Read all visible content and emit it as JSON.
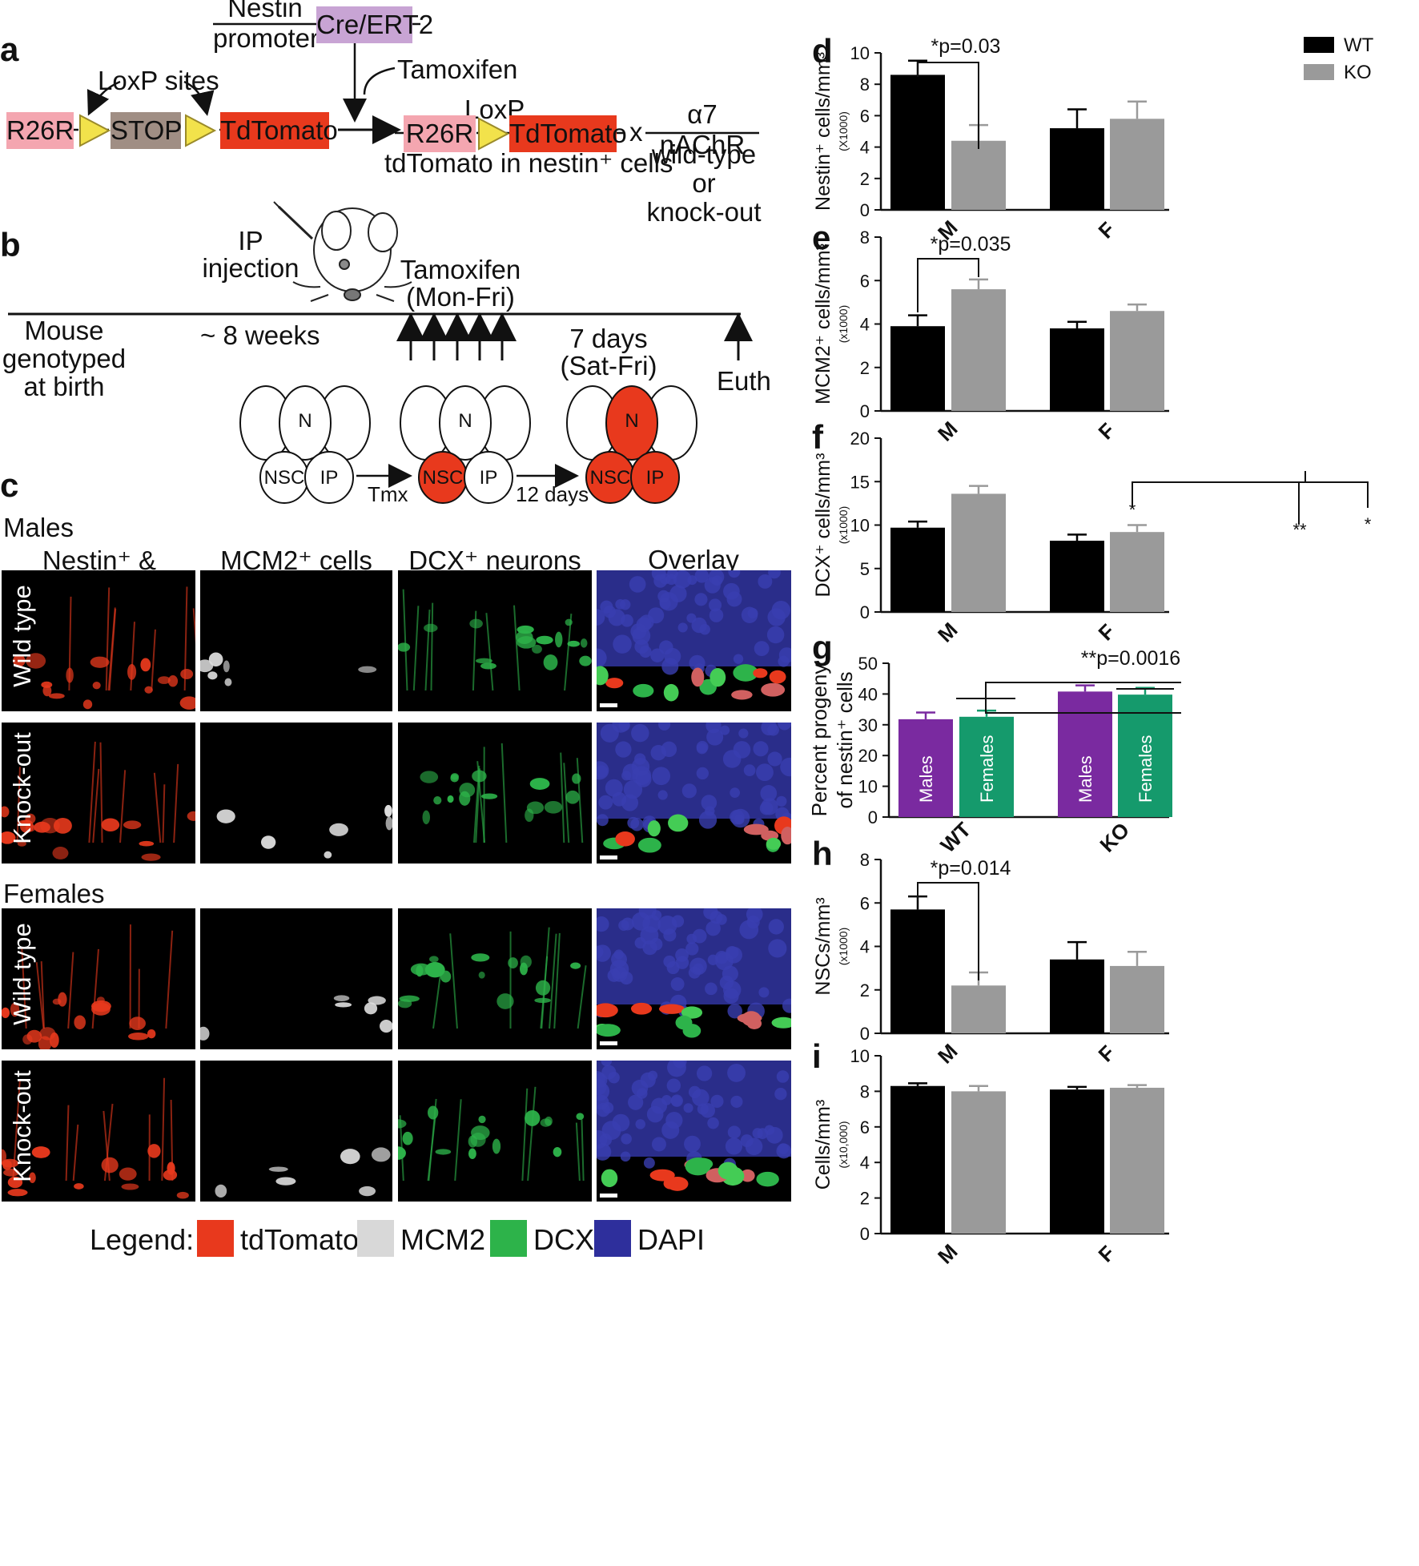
{
  "panel_labels": {
    "a": "a",
    "b": "b",
    "c": "c",
    "d": "d",
    "e": "e",
    "f": "f",
    "g": "g",
    "h": "h",
    "i": "i"
  },
  "panel_a": {
    "nestin_line1": "Nestin",
    "nestin_line2": "promoter",
    "cre": "Cre/ERT2",
    "tamoxifen": "Tamoxifen",
    "loxp_sites": "LoxP sites",
    "r26r": "R26R",
    "stop": "STOP",
    "tdtomato": "TdTomato",
    "loxp": "LoxP",
    "result": "tdTomato in nestin⁺ cells",
    "cross": "x",
    "receptor": "α7 nAChR",
    "genotype_1": "wild-type",
    "genotype_2": "or",
    "genotype_3": "knock-out",
    "colors": {
      "r26r": "#f4a6b0",
      "stop": "#a08e84",
      "tdtomato": "#e8391d",
      "cre": "#c8a4d4",
      "loxp": "#f2e24b"
    }
  },
  "panel_b": {
    "ip_1": "IP",
    "ip_2": "injection",
    "tamoxifen_1": "Tamoxifen",
    "tamoxifen_2": "(Mon-Fri)",
    "mouse_1": "Mouse",
    "mouse_2": "genotyped",
    "mouse_3": "at birth",
    "weeks": "~ 8 weeks",
    "days_1": "7 days",
    "days_2": "(Sat-Fri)",
    "euth": "Euth",
    "cell_n": "N",
    "cell_nsc": "NSC",
    "cell_ip": "IP",
    "tmx": "Tmx",
    "twelve_days": "12 days"
  },
  "panel_c": {
    "males": "Males",
    "females": "Females",
    "col_1": "Nestin⁺ & progeny",
    "col_2": "MCM2⁺ cells",
    "col_3": "DCX⁺ neurons",
    "col_4": "Overlay",
    "row_wt": "Wild type",
    "row_ko": "Knock-out"
  },
  "legend": {
    "title": "Legend:",
    "items": [
      {
        "label": "tdTomato",
        "color": "#e8391d"
      },
      {
        "label": "MCM2",
        "color": "#d8d8d8"
      },
      {
        "label": "DCX",
        "color": "#2db34a"
      },
      {
        "label": "DAPI",
        "color": "#2e2f9c"
      }
    ]
  },
  "chart_data": [
    {
      "panel": "d",
      "type": "bar",
      "ylabel": "Nestin⁺ cells/mm³",
      "ylabel_sub": "(X1000)",
      "categories": [
        "M",
        "F"
      ],
      "ylim": [
        0,
        10
      ],
      "yticks": [
        0,
        2,
        4,
        6,
        8,
        10
      ],
      "series": [
        {
          "name": "WT",
          "color": "#000000",
          "values": [
            8.6,
            5.2
          ],
          "errors": [
            0.9,
            1.2
          ]
        },
        {
          "name": "KO",
          "color": "#9a9a9a",
          "values": [
            4.4,
            5.8
          ],
          "errors": [
            1.0,
            1.1
          ]
        }
      ],
      "annotation": "*p=0.03",
      "legend": "top-right"
    },
    {
      "panel": "e",
      "type": "bar",
      "ylabel": "MCM2⁺ cells/mm³",
      "ylabel_sub": "(x1000)",
      "categories": [
        "M",
        "F"
      ],
      "ylim": [
        0,
        8
      ],
      "yticks": [
        0,
        2,
        4,
        6,
        8
      ],
      "series": [
        {
          "name": "WT",
          "color": "#000000",
          "values": [
            3.9,
            3.8
          ],
          "errors": [
            0.5,
            0.3
          ]
        },
        {
          "name": "KO",
          "color": "#9a9a9a",
          "values": [
            5.6,
            4.6
          ],
          "errors": [
            0.45,
            0.3
          ]
        }
      ],
      "annotation": "*p=0.035"
    },
    {
      "panel": "f",
      "type": "bar",
      "ylabel": "DCX⁺ cells/mm³",
      "ylabel_sub": "(x1000)",
      "categories": [
        "M",
        "F"
      ],
      "ylim": [
        0,
        20
      ],
      "yticks": [
        0,
        5,
        10,
        15,
        20
      ],
      "series": [
        {
          "name": "WT",
          "color": "#000000",
          "values": [
            9.7,
            8.2
          ],
          "errors": [
            0.7,
            0.7
          ]
        },
        {
          "name": "KO",
          "color": "#9a9a9a",
          "values": [
            13.6,
            9.2
          ],
          "errors": [
            0.9,
            0.8
          ]
        }
      ],
      "significance": [
        "*",
        "**",
        "*"
      ]
    },
    {
      "panel": "g",
      "type": "bar",
      "ylabel_1": "Percent progeny",
      "ylabel_2": "of nestin⁺ cells",
      "categories": [
        "WT",
        "KO"
      ],
      "ylim": [
        0,
        50
      ],
      "yticks": [
        0,
        10,
        20,
        30,
        40,
        50
      ],
      "series": [
        {
          "name": "Males",
          "color": "#7a2aa0",
          "values": [
            31.8,
            40.8
          ],
          "errors": [
            2.2,
            2.0
          ]
        },
        {
          "name": "Females",
          "color": "#159a6c",
          "values": [
            32.6,
            39.8
          ],
          "errors": [
            2.0,
            2.2
          ]
        }
      ],
      "annotation": "**p=0.0016"
    },
    {
      "panel": "h",
      "type": "bar",
      "ylabel": "NSCs/mm³",
      "ylabel_sub": "(x1000)",
      "categories": [
        "M",
        "F"
      ],
      "ylim": [
        0,
        8
      ],
      "yticks": [
        0,
        2,
        4,
        6,
        8
      ],
      "series": [
        {
          "name": "WT",
          "color": "#000000",
          "values": [
            5.7,
            3.4
          ],
          "errors": [
            0.6,
            0.8
          ]
        },
        {
          "name": "KO",
          "color": "#9a9a9a",
          "values": [
            2.2,
            3.1
          ],
          "errors": [
            0.6,
            0.65
          ]
        }
      ],
      "annotation": "*p=0.014"
    },
    {
      "panel": "i",
      "type": "bar",
      "ylabel": "Cells/mm³",
      "ylabel_sub": "(x10,000)",
      "categories": [
        "M",
        "F"
      ],
      "ylim": [
        0,
        10
      ],
      "yticks": [
        0,
        2,
        4,
        6,
        8,
        10
      ],
      "series": [
        {
          "name": "WT",
          "color": "#000000",
          "values": [
            8.3,
            8.1
          ],
          "errors": [
            0.15,
            0.15
          ]
        },
        {
          "name": "KO",
          "color": "#9a9a9a",
          "values": [
            8.0,
            8.2
          ],
          "errors": [
            0.3,
            0.15
          ]
        }
      ]
    }
  ]
}
